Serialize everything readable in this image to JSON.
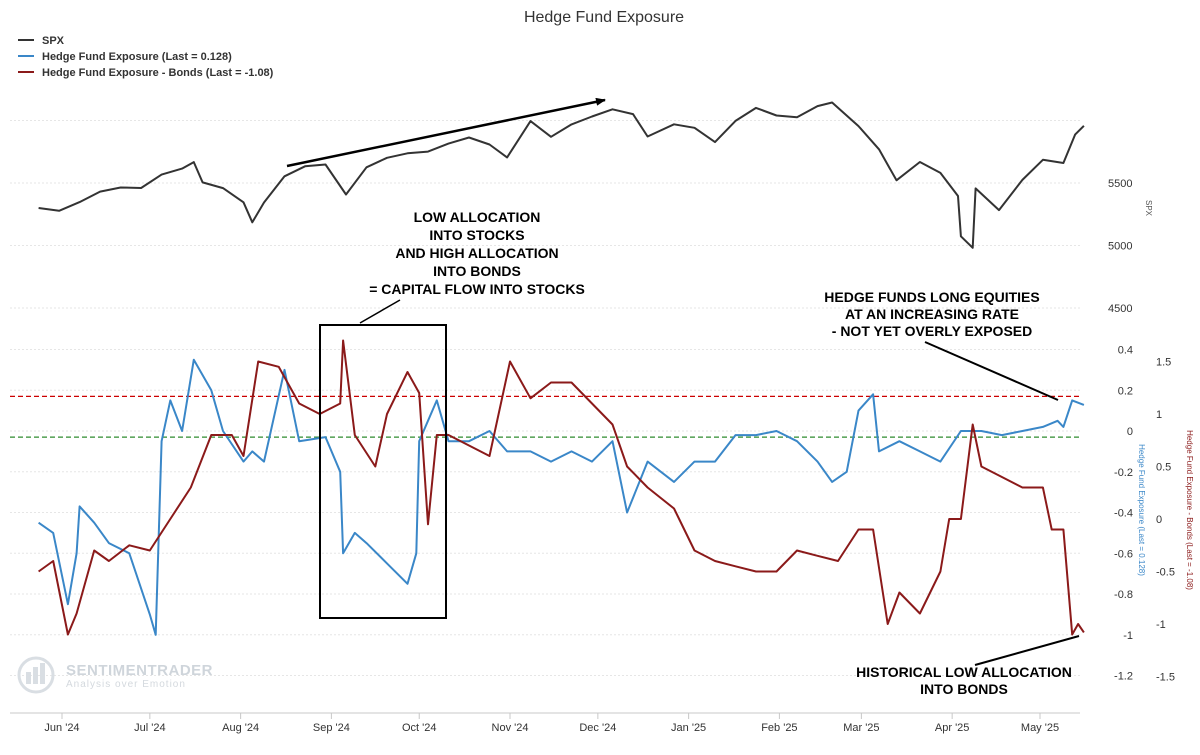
{
  "chart_data": {
    "type": "line",
    "title": "Hedge Fund Exposure",
    "legend": {
      "placement": "top-left",
      "entries": [
        {
          "label": "SPX",
          "color": "#333333"
        },
        {
          "label": "Hedge Fund Exposure (Last = 0.128)",
          "color": "#3a87c8"
        },
        {
          "label": "Hedge Fund Exposure - Bonds (Last = -1.08)",
          "color": "#8b1a1a"
        }
      ]
    },
    "x_ticks": [
      "Jun '24",
      "Jul '24",
      "Aug '24",
      "Sep '24",
      "Oct '24",
      "Nov '24",
      "Dec '24",
      "Jan '25",
      "Feb '25",
      "Mar '25",
      "Apr '25",
      "May '25"
    ],
    "axes": {
      "spx": {
        "title": "SPX",
        "ticks": [
          "5500",
          "5000",
          "4500"
        ],
        "range": [
          4500,
          6000
        ]
      },
      "exposure": {
        "title": "Hedge Fund Exposure (Last = 0.128)",
        "ticks": [
          "0.4",
          "0.2",
          "0",
          "-0.2",
          "-0.4",
          "-0.6",
          "-0.8",
          "-1",
          "-1.2"
        ],
        "range": [
          -1.2,
          0.4
        ]
      },
      "bonds": {
        "title": "Hedge Fund Exposure - Bonds (Last = -1.08)",
        "ticks": [
          "1.5",
          "1",
          "0.5",
          "0",
          "-0.5",
          "-1",
          "-1.5"
        ],
        "range": [
          -1.5,
          1.5
        ]
      }
    },
    "reference_lines": [
      {
        "axis": "exposure",
        "value": 0.17,
        "color": "#cc0000",
        "style": "dashed"
      },
      {
        "axis": "exposure",
        "value": -0.03,
        "color": "#2e8b2e",
        "style": "dashed"
      }
    ],
    "series": [
      {
        "name": "SPX",
        "color": "#333333",
        "axis": "spx",
        "points": [
          [
            "2024-05-24",
            5300
          ],
          [
            "2024-05-31",
            5278
          ],
          [
            "2024-06-07",
            5347
          ],
          [
            "2024-06-14",
            5431
          ],
          [
            "2024-06-21",
            5464
          ],
          [
            "2024-06-28",
            5460
          ],
          [
            "2024-07-05",
            5567
          ],
          [
            "2024-07-12",
            5615
          ],
          [
            "2024-07-16",
            5667
          ],
          [
            "2024-07-19",
            5505
          ],
          [
            "2024-07-26",
            5459
          ],
          [
            "2024-08-02",
            5346
          ],
          [
            "2024-08-05",
            5186
          ],
          [
            "2024-08-09",
            5344
          ],
          [
            "2024-08-16",
            5554
          ],
          [
            "2024-08-23",
            5634
          ],
          [
            "2024-08-30",
            5648
          ],
          [
            "2024-09-06",
            5408
          ],
          [
            "2024-09-13",
            5626
          ],
          [
            "2024-09-20",
            5702
          ],
          [
            "2024-09-27",
            5738
          ],
          [
            "2024-10-04",
            5751
          ],
          [
            "2024-10-11",
            5815
          ],
          [
            "2024-10-18",
            5864
          ],
          [
            "2024-10-25",
            5808
          ],
          [
            "2024-10-31",
            5705
          ],
          [
            "2024-11-08",
            5995
          ],
          [
            "2024-11-15",
            5870
          ],
          [
            "2024-11-22",
            5969
          ],
          [
            "2024-11-29",
            6032
          ],
          [
            "2024-12-06",
            6090
          ],
          [
            "2024-12-13",
            6051
          ],
          [
            "2024-12-18",
            5872
          ],
          [
            "2024-12-27",
            5970
          ],
          [
            "2025-01-03",
            5942
          ],
          [
            "2025-01-10",
            5827
          ],
          [
            "2025-01-17",
            5997
          ],
          [
            "2025-01-24",
            6101
          ],
          [
            "2025-01-31",
            6040
          ],
          [
            "2025-02-07",
            6026
          ],
          [
            "2025-02-14",
            6115
          ],
          [
            "2025-02-19",
            6144
          ],
          [
            "2025-02-28",
            5955
          ],
          [
            "2025-03-07",
            5770
          ],
          [
            "2025-03-13",
            5522
          ],
          [
            "2025-03-21",
            5668
          ],
          [
            "2025-03-28",
            5581
          ],
          [
            "2025-04-03",
            5396
          ],
          [
            "2025-04-04",
            5074
          ],
          [
            "2025-04-08",
            4982
          ],
          [
            "2025-04-09",
            5457
          ],
          [
            "2025-04-17",
            5283
          ],
          [
            "2025-04-25",
            5525
          ],
          [
            "2025-05-02",
            5686
          ],
          [
            "2025-05-09",
            5660
          ],
          [
            "2025-05-13",
            5887
          ],
          [
            "2025-05-16",
            5958
          ]
        ]
      },
      {
        "name": "Hedge Fund Exposure (Last = 0.128)",
        "color": "#3a87c8",
        "axis": "exposure",
        "points": [
          [
            "2024-05-24",
            -0.45
          ],
          [
            "2024-05-29",
            -0.5
          ],
          [
            "2024-06-03",
            -0.85
          ],
          [
            "2024-06-06",
            -0.6
          ],
          [
            "2024-06-07",
            -0.37
          ],
          [
            "2024-06-12",
            -0.45
          ],
          [
            "2024-06-17",
            -0.55
          ],
          [
            "2024-06-24",
            -0.6
          ],
          [
            "2024-07-01",
            -0.9
          ],
          [
            "2024-07-03",
            -1.0
          ],
          [
            "2024-07-05",
            -0.05
          ],
          [
            "2024-07-08",
            0.15
          ],
          [
            "2024-07-12",
            0.0
          ],
          [
            "2024-07-16",
            0.35
          ],
          [
            "2024-07-22",
            0.2
          ],
          [
            "2024-07-26",
            0.0
          ],
          [
            "2024-08-02",
            -0.15
          ],
          [
            "2024-08-05",
            -0.1
          ],
          [
            "2024-08-09",
            -0.15
          ],
          [
            "2024-08-16",
            0.3
          ],
          [
            "2024-08-21",
            -0.05
          ],
          [
            "2024-08-30",
            -0.03
          ],
          [
            "2024-09-04",
            -0.2
          ],
          [
            "2024-09-05",
            -0.6
          ],
          [
            "2024-09-09",
            -0.5
          ],
          [
            "2024-09-13",
            -0.55
          ],
          [
            "2024-09-20",
            -0.65
          ],
          [
            "2024-09-27",
            -0.75
          ],
          [
            "2024-09-30",
            -0.6
          ],
          [
            "2024-10-01",
            -0.05
          ],
          [
            "2024-10-07",
            0.15
          ],
          [
            "2024-10-11",
            -0.05
          ],
          [
            "2024-10-18",
            -0.05
          ],
          [
            "2024-10-25",
            0.0
          ],
          [
            "2024-10-31",
            -0.1
          ],
          [
            "2024-11-08",
            -0.1
          ],
          [
            "2024-11-15",
            -0.15
          ],
          [
            "2024-11-22",
            -0.1
          ],
          [
            "2024-11-29",
            -0.15
          ],
          [
            "2024-12-06",
            -0.05
          ],
          [
            "2024-12-11",
            -0.4
          ],
          [
            "2024-12-18",
            -0.15
          ],
          [
            "2024-12-27",
            -0.25
          ],
          [
            "2025-01-03",
            -0.15
          ],
          [
            "2025-01-10",
            -0.15
          ],
          [
            "2025-01-17",
            -0.02
          ],
          [
            "2025-01-24",
            -0.02
          ],
          [
            "2025-01-31",
            0.0
          ],
          [
            "2025-02-07",
            -0.05
          ],
          [
            "2025-02-14",
            -0.15
          ],
          [
            "2025-02-19",
            -0.25
          ],
          [
            "2025-02-24",
            -0.2
          ],
          [
            "2025-02-28",
            0.1
          ],
          [
            "2025-03-05",
            0.18
          ],
          [
            "2025-03-07",
            -0.1
          ],
          [
            "2025-03-14",
            -0.05
          ],
          [
            "2025-03-21",
            -0.1
          ],
          [
            "2025-03-28",
            -0.15
          ],
          [
            "2025-04-04",
            0.0
          ],
          [
            "2025-04-11",
            0.0
          ],
          [
            "2025-04-18",
            -0.02
          ],
          [
            "2025-04-25",
            0.0
          ],
          [
            "2025-05-02",
            0.02
          ],
          [
            "2025-05-07",
            0.05
          ],
          [
            "2025-05-09",
            0.02
          ],
          [
            "2025-05-12",
            0.15
          ],
          [
            "2025-05-16",
            0.128
          ]
        ]
      },
      {
        "name": "Hedge Fund Exposure - Bonds (Last = -1.08)",
        "color": "#8b1a1a",
        "axis": "bonds",
        "points": [
          [
            "2024-05-24",
            -0.5
          ],
          [
            "2024-05-29",
            -0.4
          ],
          [
            "2024-06-03",
            -1.1
          ],
          [
            "2024-06-06",
            -0.9
          ],
          [
            "2024-06-12",
            -0.3
          ],
          [
            "2024-06-17",
            -0.4
          ],
          [
            "2024-06-24",
            -0.25
          ],
          [
            "2024-07-01",
            -0.3
          ],
          [
            "2024-07-08",
            0.0
          ],
          [
            "2024-07-15",
            0.3
          ],
          [
            "2024-07-22",
            0.8
          ],
          [
            "2024-07-29",
            0.8
          ],
          [
            "2024-08-02",
            0.6
          ],
          [
            "2024-08-07",
            1.5
          ],
          [
            "2024-08-14",
            1.45
          ],
          [
            "2024-08-21",
            1.1
          ],
          [
            "2024-08-28",
            1.0
          ],
          [
            "2024-09-04",
            1.1
          ],
          [
            "2024-09-05",
            1.7
          ],
          [
            "2024-09-09",
            0.8
          ],
          [
            "2024-09-16",
            0.5
          ],
          [
            "2024-09-20",
            1.0
          ],
          [
            "2024-09-27",
            1.4
          ],
          [
            "2024-10-01",
            1.2
          ],
          [
            "2024-10-04",
            -0.05
          ],
          [
            "2024-10-07",
            0.8
          ],
          [
            "2024-10-11",
            0.8
          ],
          [
            "2024-10-18",
            0.7
          ],
          [
            "2024-10-25",
            0.6
          ],
          [
            "2024-11-01",
            1.5
          ],
          [
            "2024-11-08",
            1.15
          ],
          [
            "2024-11-15",
            1.3
          ],
          [
            "2024-11-22",
            1.3
          ],
          [
            "2024-11-29",
            1.1
          ],
          [
            "2024-12-06",
            0.9
          ],
          [
            "2024-12-11",
            0.5
          ],
          [
            "2024-12-18",
            0.3
          ],
          [
            "2024-12-27",
            0.1
          ],
          [
            "2025-01-03",
            -0.3
          ],
          [
            "2025-01-10",
            -0.4
          ],
          [
            "2025-01-17",
            -0.45
          ],
          [
            "2025-01-24",
            -0.5
          ],
          [
            "2025-01-31",
            -0.5
          ],
          [
            "2025-02-07",
            -0.3
          ],
          [
            "2025-02-14",
            -0.35
          ],
          [
            "2025-02-21",
            -0.4
          ],
          [
            "2025-02-28",
            -0.1
          ],
          [
            "2025-03-05",
            -0.1
          ],
          [
            "2025-03-10",
            -1.0
          ],
          [
            "2025-03-14",
            -0.7
          ],
          [
            "2025-03-21",
            -0.9
          ],
          [
            "2025-03-28",
            -0.5
          ],
          [
            "2025-03-31",
            0.0
          ],
          [
            "2025-04-04",
            0.0
          ],
          [
            "2025-04-08",
            0.9
          ],
          [
            "2025-04-11",
            0.5
          ],
          [
            "2025-04-18",
            0.4
          ],
          [
            "2025-04-25",
            0.3
          ],
          [
            "2025-05-02",
            0.3
          ],
          [
            "2025-05-05",
            -0.1
          ],
          [
            "2025-05-09",
            -0.1
          ],
          [
            "2025-05-12",
            -1.1
          ],
          [
            "2025-05-14",
            -1.0
          ],
          [
            "2025-05-16",
            -1.08
          ]
        ]
      }
    ]
  },
  "annotations": {
    "box_label": [
      "LOW ALLOCATION",
      "INTO STOCKS",
      "AND HIGH ALLOCATION",
      "INTO BONDS",
      "= CAPITAL FLOW INTO STOCKS"
    ],
    "long_equities": [
      "HEDGE FUNDS LONG EQUITIES",
      "AT AN INCREASING RATE",
      "- NOT YET OVERLY EXPOSED"
    ],
    "low_bonds": [
      "HISTORICAL LOW ALLOCATION",
      "INTO BONDS"
    ]
  },
  "watermark": {
    "name": "SENTIMENTRADER",
    "tagline": "Analysis over Emotion"
  }
}
